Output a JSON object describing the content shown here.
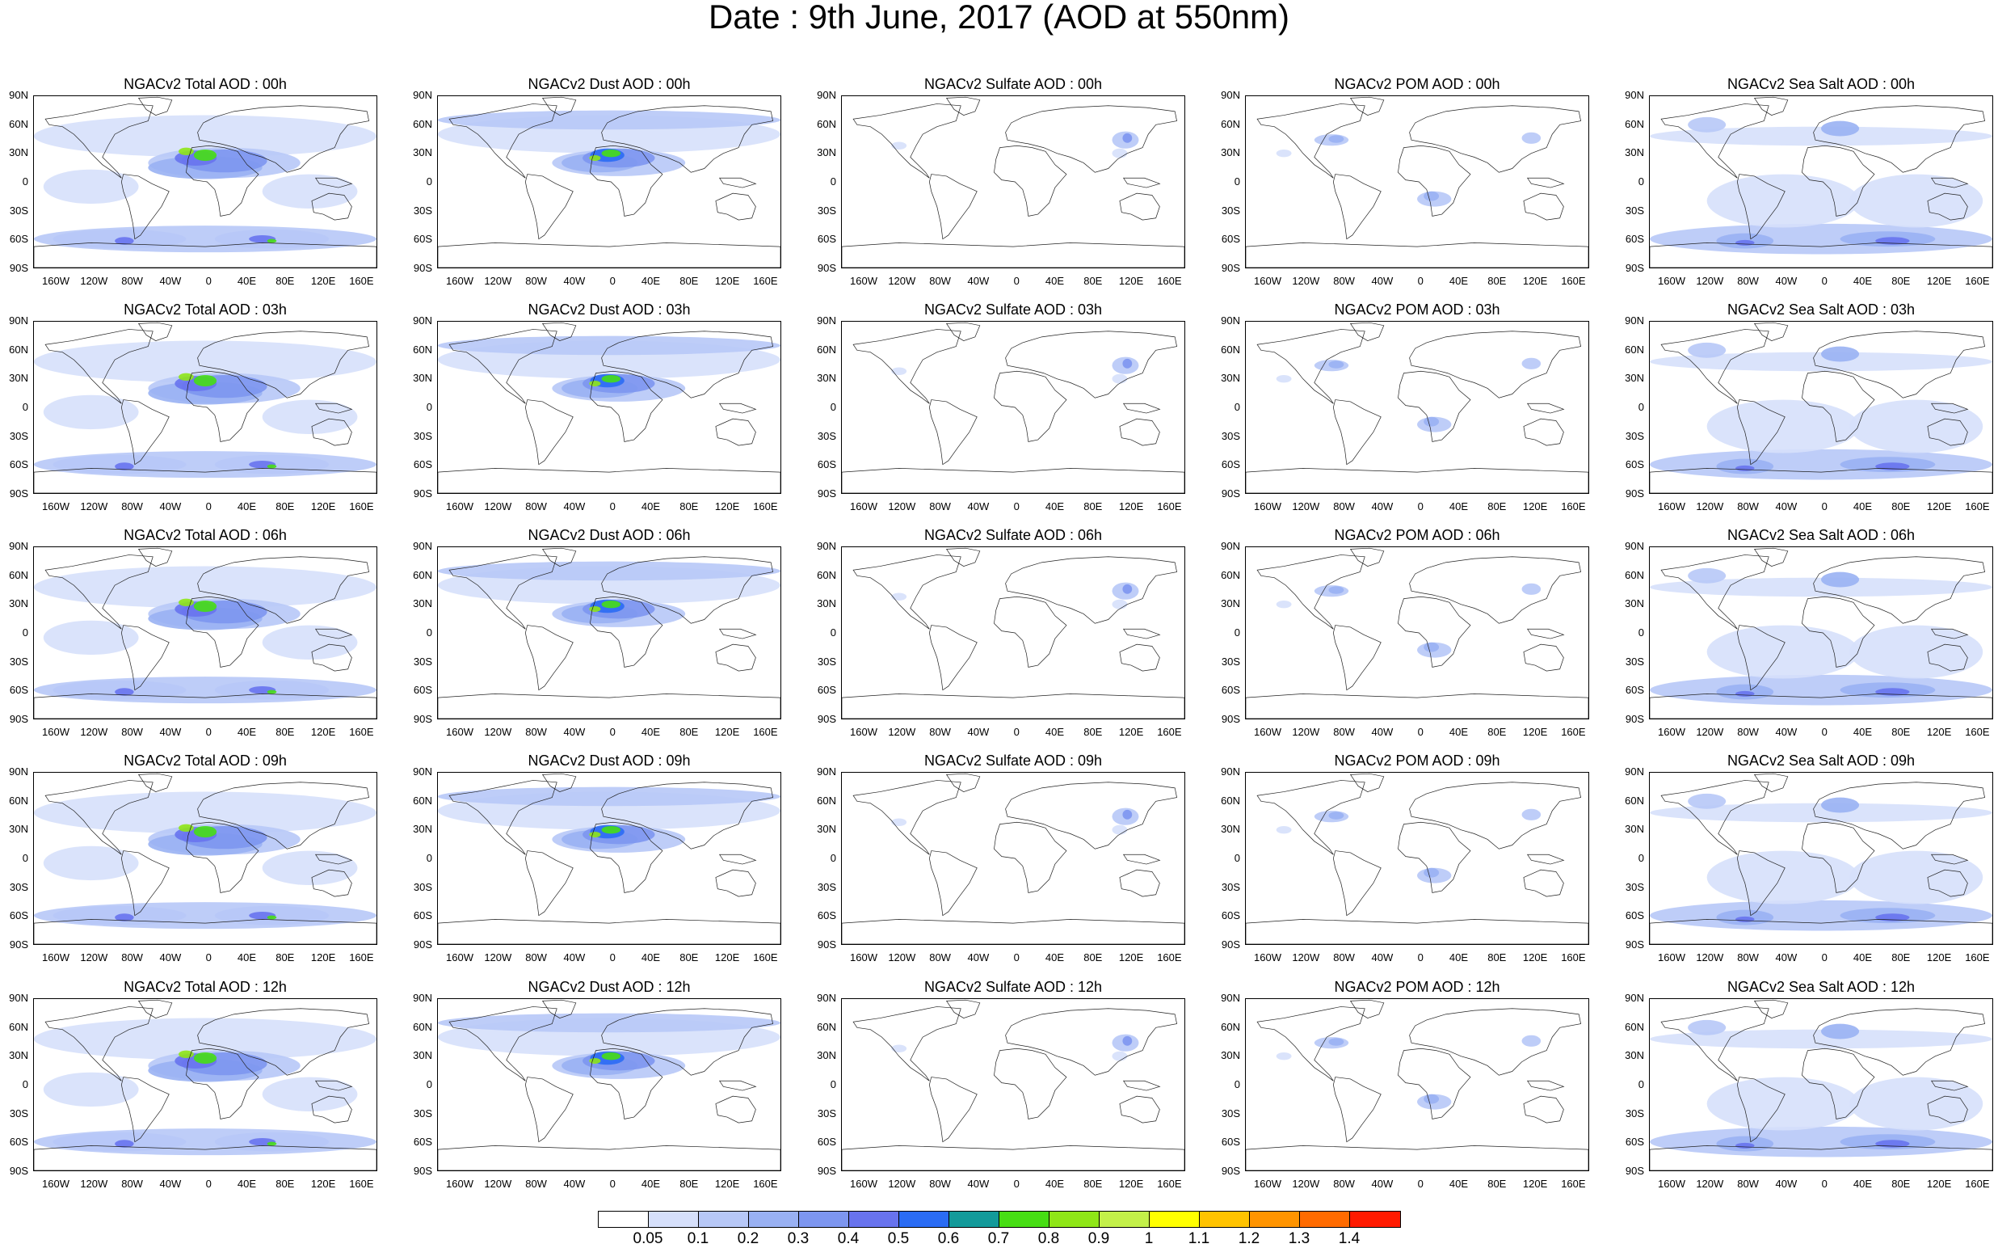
{
  "title": "Date : 9th June, 2017 (AOD at 550nm)",
  "panel_titles": [
    [
      "NGACv2 Total AOD : 00h",
      "NGACv2 Dust AOD : 00h",
      "NGACv2 Sulfate AOD : 00h",
      "NGACv2 POM AOD : 00h",
      "NGACv2 Sea Salt AOD : 00h"
    ],
    [
      "NGACv2 Total AOD : 03h",
      "NGACv2 Dust AOD : 03h",
      "NGACv2 Sulfate AOD : 03h",
      "NGACv2 POM AOD : 03h",
      "NGACv2 Sea Salt AOD : 03h"
    ],
    [
      "NGACv2 Total AOD : 06h",
      "NGACv2 Dust AOD : 06h",
      "NGACv2 Sulfate AOD : 06h",
      "NGACv2 POM AOD : 06h",
      "NGACv2 Sea Salt AOD : 06h"
    ],
    [
      "NGACv2 Total AOD : 09h",
      "NGACv2 Dust AOD : 09h",
      "NGACv2 Sulfate AOD : 09h",
      "NGACv2 POM AOD : 09h",
      "NGACv2 Sea Salt  AOD : 09h"
    ],
    [
      "NGACv2 Total AOD  : 12h",
      "NGACv2 Dust AOD : 12h",
      "NGACv2 Sulfate AOD : 12h",
      "NGACv2 POM  AOD : 12h",
      "NGACv2 Sea Salt  AOD : 12h"
    ]
  ],
  "lat_ticks": [
    "90N",
    "60N",
    "30N",
    "0",
    "30S",
    "60S",
    "90S"
  ],
  "lon_ticks": [
    "160W",
    "120W",
    "80W",
    "40W",
    "0",
    "40E",
    "80E",
    "120E",
    "160E"
  ],
  "aerosol_types": [
    "total",
    "dust",
    "sulfate",
    "pom",
    "seasalt"
  ],
  "colorbar": {
    "colors": [
      "#ffffff",
      "#d6e0fb",
      "#b7c8f7",
      "#99b1f3",
      "#7d96f0",
      "#6873ee",
      "#2a6cf4",
      "#139a9a",
      "#47de14",
      "#8fe617",
      "#c3f049",
      "#ffff00",
      "#ffc300",
      "#ff9400",
      "#ff6b00",
      "#ff1a00"
    ],
    "labels": [
      "0.05",
      "0.1",
      "0.2",
      "0.3",
      "0.4",
      "0.5",
      "0.6",
      "0.7",
      "0.8",
      "0.9",
      "1",
      "1.1",
      "1.2",
      "1.3",
      "1.4"
    ]
  }
}
